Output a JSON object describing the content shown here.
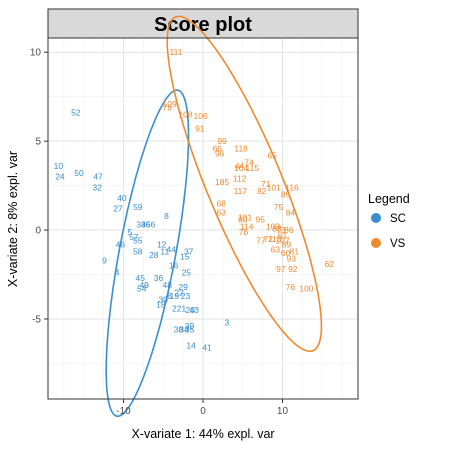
{
  "chart_data": {
    "type": "scatter",
    "title": "Score plot",
    "xlabel": "X-variate 1: 44% expl. var",
    "ylabel": "X-variate 2: 8% expl. var",
    "xlim": [
      -19.5,
      19.5
    ],
    "ylim": [
      -9.5,
      10.8
    ],
    "xticks": [
      -10,
      0,
      10
    ],
    "yticks": [
      -5,
      0,
      5,
      10
    ],
    "grid": true,
    "legend": {
      "title": "Legend",
      "position": "right"
    },
    "series": [
      {
        "name": "SC",
        "color": "#3a8ecf",
        "ellipse": {
          "cx": -7.0,
          "cy": -1.3,
          "rx": 10.0,
          "ry": 3.3,
          "angle_deg": 65
        },
        "points": [
          {
            "label": "52",
            "x": -16.0,
            "y": 6.6
          },
          {
            "label": "10",
            "x": -18.2,
            "y": 3.6
          },
          {
            "label": "24",
            "x": -18.0,
            "y": 3.0
          },
          {
            "label": "50",
            "x": -15.6,
            "y": 3.2
          },
          {
            "label": "47",
            "x": -13.2,
            "y": 3.0
          },
          {
            "label": "32",
            "x": -13.3,
            "y": 2.4
          },
          {
            "label": "40",
            "x": -10.2,
            "y": 1.8
          },
          {
            "label": "27",
            "x": -10.7,
            "y": 1.2
          },
          {
            "label": "59",
            "x": -8.2,
            "y": 1.3
          },
          {
            "label": "8",
            "x": -4.6,
            "y": 0.8
          },
          {
            "label": "33",
            "x": -7.8,
            "y": 0.3
          },
          {
            "label": "46",
            "x": -7.2,
            "y": 0.3
          },
          {
            "label": "56",
            "x": -6.6,
            "y": 0.3
          },
          {
            "label": "5",
            "x": -9.2,
            "y": -0.1
          },
          {
            "label": "57",
            "x": -8.7,
            "y": -0.4
          },
          {
            "label": "55",
            "x": -8.2,
            "y": -0.6
          },
          {
            "label": "46",
            "x": -10.4,
            "y": -0.8
          },
          {
            "label": "58",
            "x": -8.2,
            "y": -1.2
          },
          {
            "label": "12",
            "x": -5.2,
            "y": -0.8
          },
          {
            "label": "11",
            "x": -4.8,
            "y": -1.2
          },
          {
            "label": "44",
            "x": -4.0,
            "y": -1.1
          },
          {
            "label": "28",
            "x": -6.2,
            "y": -1.4
          },
          {
            "label": "37",
            "x": -1.8,
            "y": -1.2
          },
          {
            "label": "15",
            "x": -2.3,
            "y": -1.5
          },
          {
            "label": "9",
            "x": -12.4,
            "y": -1.7
          },
          {
            "label": "16",
            "x": -3.7,
            "y": -2.0
          },
          {
            "label": "4",
            "x": -10.8,
            "y": -2.4
          },
          {
            "label": "25",
            "x": -2.1,
            "y": -2.4
          },
          {
            "label": "45",
            "x": -7.9,
            "y": -2.7
          },
          {
            "label": "36",
            "x": -5.6,
            "y": -2.7
          },
          {
            "label": "49",
            "x": -7.4,
            "y": -3.1
          },
          {
            "label": "54",
            "x": -7.7,
            "y": -3.3
          },
          {
            "label": "48",
            "x": -4.5,
            "y": -3.1
          },
          {
            "label": "29",
            "x": -2.5,
            "y": -3.2
          },
          {
            "label": "22",
            "x": -3.0,
            "y": -3.5
          },
          {
            "label": "6",
            "x": -4.2,
            "y": -3.7
          },
          {
            "label": "23",
            "x": -2.2,
            "y": -3.7
          },
          {
            "label": "19",
            "x": -3.6,
            "y": -3.7
          },
          {
            "label": "30",
            "x": -5.0,
            "y": -3.9
          },
          {
            "label": "18",
            "x": -5.3,
            "y": -4.2
          },
          {
            "label": "21",
            "x": -2.7,
            "y": -4.4
          },
          {
            "label": "2",
            "x": -3.6,
            "y": -4.4
          },
          {
            "label": "20",
            "x": -1.6,
            "y": -4.5
          },
          {
            "label": "43",
            "x": -1.1,
            "y": -4.5
          },
          {
            "label": "3",
            "x": 3.0,
            "y": -5.2
          },
          {
            "label": "39",
            "x": -1.7,
            "y": -5.4
          },
          {
            "label": "38",
            "x": -3.1,
            "y": -5.6
          },
          {
            "label": "34",
            "x": -2.4,
            "y": -5.6
          },
          {
            "label": "35",
            "x": -1.7,
            "y": -5.6
          },
          {
            "label": "14",
            "x": -1.5,
            "y": -6.5
          },
          {
            "label": "41",
            "x": 0.5,
            "y": -6.6
          }
        ]
      },
      {
        "name": "VS",
        "color": "#ee8a2e",
        "ellipse": {
          "cx": 5.2,
          "cy": 2.6,
          "rx": 13.0,
          "ry": 3.7,
          "angle_deg": -44
        },
        "points": [
          {
            "label": "111",
            "x": -3.4,
            "y": 10.0
          },
          {
            "label": "79",
            "x": -4.5,
            "y": 6.9
          },
          {
            "label": "109",
            "x": -4.2,
            "y": 7.1
          },
          {
            "label": "108",
            "x": -2.2,
            "y": 6.5
          },
          {
            "label": "106",
            "x": -0.3,
            "y": 6.4
          },
          {
            "label": "91",
            "x": -0.4,
            "y": 5.7
          },
          {
            "label": "99",
            "x": 2.4,
            "y": 5.0
          },
          {
            "label": "66",
            "x": 1.8,
            "y": 4.6
          },
          {
            "label": "118",
            "x": 4.8,
            "y": 4.6
          },
          {
            "label": "96",
            "x": 2.1,
            "y": 4.3
          },
          {
            "label": "65",
            "x": 8.7,
            "y": 4.2
          },
          {
            "label": "74",
            "x": 5.8,
            "y": 3.8
          },
          {
            "label": "44",
            "x": 4.6,
            "y": 3.6
          },
          {
            "label": "115",
            "x": 6.2,
            "y": 3.5
          },
          {
            "label": "104",
            "x": 4.8,
            "y": 3.5
          },
          {
            "label": "112",
            "x": 4.6,
            "y": 2.9
          },
          {
            "label": "185",
            "x": 2.4,
            "y": 2.7
          },
          {
            "label": "71",
            "x": 7.9,
            "y": 2.6
          },
          {
            "label": "101",
            "x": 8.9,
            "y": 2.4
          },
          {
            "label": "116",
            "x": 11.2,
            "y": 2.4
          },
          {
            "label": "117",
            "x": 4.7,
            "y": 2.2
          },
          {
            "label": "82",
            "x": 7.4,
            "y": 2.2
          },
          {
            "label": "85",
            "x": 10.4,
            "y": 2.0
          },
          {
            "label": "68",
            "x": 2.3,
            "y": 1.5
          },
          {
            "label": "75",
            "x": 9.5,
            "y": 1.3
          },
          {
            "label": "63",
            "x": 2.3,
            "y": 1.0
          },
          {
            "label": "84",
            "x": 11.0,
            "y": 1.0
          },
          {
            "label": "181",
            "x": 5.3,
            "y": 0.7
          },
          {
            "label": "95",
            "x": 7.2,
            "y": 0.6
          },
          {
            "label": "80",
            "x": 5.0,
            "y": 0.6
          },
          {
            "label": "114",
            "x": 5.5,
            "y": 0.2
          },
          {
            "label": "103",
            "x": 8.8,
            "y": 0.2
          },
          {
            "label": "83",
            "x": 9.3,
            "y": 0.1
          },
          {
            "label": "76",
            "x": 5.1,
            "y": -0.1
          },
          {
            "label": "73",
            "x": 9.8,
            "y": 0.0
          },
          {
            "label": "86",
            "x": 10.8,
            "y": 0.0
          },
          {
            "label": "61",
            "x": 10.0,
            "y": -0.3
          },
          {
            "label": "72",
            "x": 8.2,
            "y": -0.5
          },
          {
            "label": "107",
            "x": 10.0,
            "y": -0.6
          },
          {
            "label": "113",
            "x": 9.0,
            "y": -0.5
          },
          {
            "label": "77",
            "x": 7.3,
            "y": -0.6
          },
          {
            "label": "89",
            "x": 10.5,
            "y": -0.8
          },
          {
            "label": "81",
            "x": 11.5,
            "y": -1.2
          },
          {
            "label": "63",
            "x": 9.1,
            "y": -1.1
          },
          {
            "label": "62",
            "x": 15.9,
            "y": -1.9
          },
          {
            "label": "93",
            "x": 11.1,
            "y": -1.6
          },
          {
            "label": "60",
            "x": 10.4,
            "y": -1.3
          },
          {
            "label": "92",
            "x": 11.3,
            "y": -2.2
          },
          {
            "label": "97",
            "x": 9.8,
            "y": -2.2
          },
          {
            "label": "76",
            "x": 11.0,
            "y": -3.2
          },
          {
            "label": "100",
            "x": 13.0,
            "y": -3.3
          }
        ]
      }
    ]
  }
}
